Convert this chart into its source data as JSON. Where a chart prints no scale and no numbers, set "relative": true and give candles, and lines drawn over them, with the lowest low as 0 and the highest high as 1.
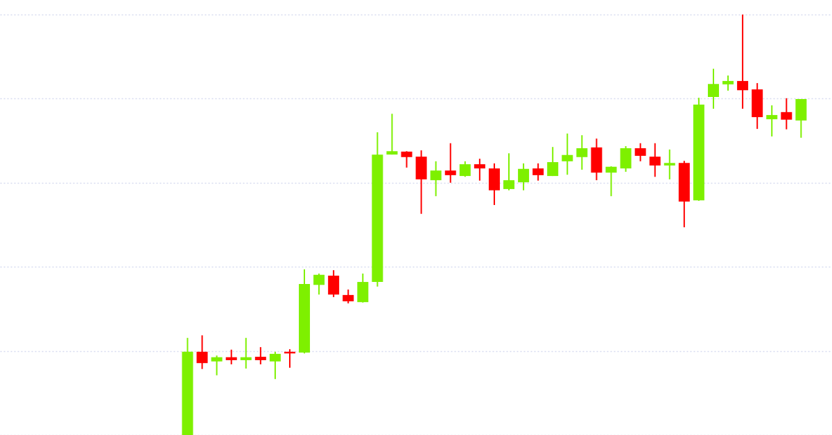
{
  "chart_data": {
    "type": "candlestick",
    "relative": true,
    "grid": "y",
    "categories": [
      null,
      null,
      null,
      null,
      null,
      null,
      null,
      null,
      null,
      null,
      null,
      null,
      null,
      null,
      null,
      null,
      null,
      null,
      null,
      null,
      null,
      null,
      null,
      null,
      null,
      null,
      null,
      null,
      null,
      null,
      null,
      null,
      null,
      null,
      null,
      null,
      null,
      null,
      null,
      null,
      null,
      null,
      null
    ],
    "ohlc": [
      [
        0,
        0.231,
        0,
        0.198
      ],
      [
        0.198,
        0.237,
        0.157,
        0.171
      ],
      [
        0.175,
        0.189,
        0.142,
        0.185
      ],
      [
        0.185,
        0.203,
        0.168,
        0.178
      ],
      [
        0.178,
        0.231,
        0.158,
        0.185
      ],
      [
        0.186,
        0.209,
        0.168,
        0.178
      ],
      [
        0.175,
        0.198,
        0.133,
        0.193
      ],
      [
        0.198,
        0.204,
        0.16,
        0.194
      ],
      [
        0.196,
        0.394,
        0.194,
        0.359
      ],
      [
        0.357,
        0.384,
        0.334,
        0.381
      ],
      [
        0.379,
        0.392,
        0.328,
        0.334
      ],
      [
        0.333,
        0.346,
        0.313,
        0.318
      ],
      [
        0.316,
        0.384,
        0.315,
        0.364
      ],
      [
        0.364,
        0.72,
        0.353,
        0.667
      ],
      [
        0.667,
        0.764,
        0.667,
        0.675
      ],
      [
        0.674,
        0.675,
        0.636,
        0.661
      ],
      [
        0.662,
        0.677,
        0.526,
        0.608
      ],
      [
        0.606,
        0.651,
        0.568,
        0.629
      ],
      [
        0.629,
        0.694,
        0.6,
        0.618
      ],
      [
        0.616,
        0.651,
        0.614,
        0.644
      ],
      [
        0.644,
        0.657,
        0.605,
        0.634
      ],
      [
        0.634,
        0.646,
        0.547,
        0.582
      ],
      [
        0.585,
        0.67,
        0.582,
        0.606
      ],
      [
        0.601,
        0.646,
        0.582,
        0.633
      ],
      [
        0.634,
        0.646,
        0.605,
        0.618
      ],
      [
        0.616,
        0.685,
        0.616,
        0.649
      ],
      [
        0.651,
        0.717,
        0.619,
        0.666
      ],
      [
        0.661,
        0.713,
        0.631,
        0.682
      ],
      [
        0.684,
        0.705,
        0.606,
        0.624
      ],
      [
        0.624,
        0.639,
        0.568,
        0.638
      ],
      [
        0.634,
        0.687,
        0.626,
        0.682
      ],
      [
        0.682,
        0.694,
        0.651,
        0.664
      ],
      [
        0.662,
        0.694,
        0.614,
        0.641
      ],
      [
        0.641,
        0.679,
        0.608,
        0.647
      ],
      [
        0.647,
        0.652,
        0.494,
        0.555
      ],
      [
        0.558,
        0.802,
        0.557,
        0.786
      ],
      [
        0.804,
        0.871,
        0.776,
        0.835
      ],
      [
        0.834,
        0.855,
        0.819,
        0.842
      ],
      [
        0.842,
        1,
        0.776,
        0.82
      ],
      [
        0.822,
        0.837,
        0.728,
        0.756
      ],
      [
        0.751,
        0.784,
        0.71,
        0.761
      ],
      [
        0.768,
        0.801,
        0.727,
        0.75
      ],
      [
        0.748,
        0.799,
        0.707,
        0.799
      ]
    ],
    "colors": [
      "#7ef000",
      "#ff0000",
      "#7ef000",
      "#ff0000",
      "#7ef000",
      "#ff0000",
      "#7ef000",
      "#ff0000",
      "#7ef000",
      "#7ef000",
      "#ff0000",
      "#ff0000",
      "#7ef000",
      "#7ef000",
      "#7ef000",
      "#ff0000",
      "#ff0000",
      "#7ef000",
      "#ff0000",
      "#7ef000",
      "#ff0000",
      "#ff0000",
      "#7ef000",
      "#7ef000",
      "#ff0000",
      "#7ef000",
      "#7ef000",
      "#7ef000",
      "#ff0000",
      "#7ef000",
      "#7ef000",
      "#ff0000",
      "#ff0000",
      "#7ef000",
      "#ff0000",
      "#7ef000",
      "#7ef000",
      "#7ef000",
      "#ff0000",
      "#ff0000",
      "#7ef000",
      "#ff0000",
      "#7ef000"
    ]
  }
}
